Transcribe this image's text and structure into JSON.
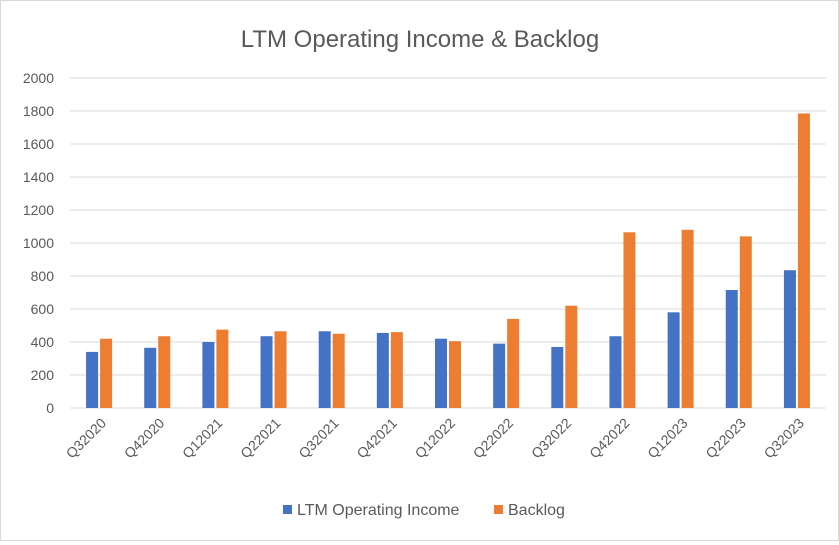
{
  "chart_data": {
    "type": "bar",
    "title": "LTM Operating Income & Backlog",
    "categories": [
      "Q32020",
      "Q42020",
      "Q12021",
      "Q22021",
      "Q32021",
      "Q42021",
      "Q12022",
      "Q22022",
      "Q32022",
      "Q42022",
      "Q12023",
      "Q22023",
      "Q32023"
    ],
    "series": [
      {
        "name": "LTM Operating Income",
        "color": "#4472c4",
        "values": [
          340,
          365,
          400,
          435,
          465,
          455,
          420,
          390,
          370,
          435,
          580,
          715,
          835
        ]
      },
      {
        "name": "Backlog",
        "color": "#ed7d31",
        "values": [
          420,
          435,
          475,
          465,
          450,
          460,
          405,
          540,
          620,
          1065,
          1080,
          1040,
          1785
        ]
      }
    ],
    "ylim": [
      0,
      2000
    ],
    "yticks": [
      "0",
      "200",
      "400",
      "600",
      "800",
      "1000",
      "1200",
      "1400",
      "1600",
      "1800",
      "2000"
    ],
    "grid": true,
    "legend": "bottom"
  }
}
